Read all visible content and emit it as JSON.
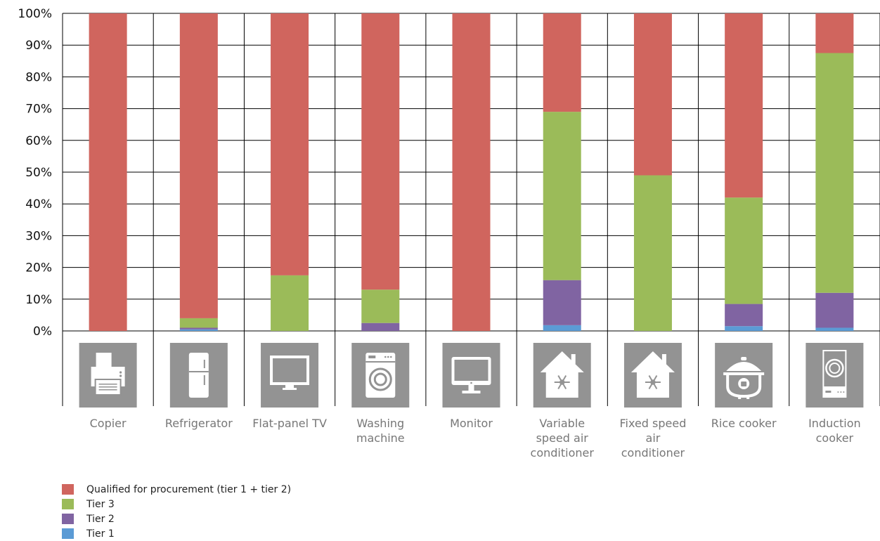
{
  "chart_data": {
    "type": "bar",
    "stacked": true,
    "categories": [
      "Copier",
      "Refrigerator",
      "Flat-panel TV",
      "Washing machine",
      "Monitor",
      "Variable speed air conditioner",
      "Fixed speed air conditioner",
      "Rice cooker",
      "Induction cooker"
    ],
    "category_icons": [
      "printer-icon",
      "refrigerator-icon",
      "tv-icon",
      "washing-machine-icon",
      "monitor-icon",
      "house-snowflake-icon",
      "house-snowflake-icon",
      "rice-cooker-icon",
      "induction-cooker-icon"
    ],
    "series": [
      {
        "name": "Tier 1",
        "color": "#5b9bd5",
        "values": [
          0,
          0.5,
          0,
          0,
          0,
          1.8,
          0,
          1.5,
          1
        ]
      },
      {
        "name": "Tier 2",
        "color": "#8064a2",
        "values": [
          0,
          0.5,
          0,
          2.5,
          0,
          14.2,
          0,
          7,
          11
        ]
      },
      {
        "name": "Tier 3",
        "color": "#9bbb59",
        "values": [
          0,
          3,
          17.5,
          10.5,
          0,
          53,
          49,
          33.5,
          75.5
        ]
      },
      {
        "name": "Qualified for procurement (tier 1 + tier 2)",
        "color": "#d0655e",
        "values": [
          100,
          96,
          82.5,
          87,
          100,
          31,
          51,
          58,
          12.5
        ]
      }
    ],
    "ylim": [
      0,
      100
    ],
    "yticks": [
      "0%",
      "10%",
      "20%",
      "30%",
      "40%",
      "50%",
      "60%",
      "70%",
      "80%",
      "90%",
      "100%"
    ],
    "title": "",
    "xlabel": "",
    "ylabel": "",
    "grid": true,
    "legend_position": "bottom-left",
    "legend_order": [
      "Qualified for procurement (tier 1 + tier 2)",
      "Tier 3",
      "Tier 2",
      "Tier 1"
    ],
    "icon_tile_color": "#939393"
  },
  "legend": [
    {
      "label": "Qualified for procurement (tier 1 + tier 2)",
      "color": "#d0655e"
    },
    {
      "label": "Tier 3",
      "color": "#9bbb59"
    },
    {
      "label": "Tier 2",
      "color": "#8064a2"
    },
    {
      "label": "Tier 1",
      "color": "#5b9bd5"
    }
  ]
}
